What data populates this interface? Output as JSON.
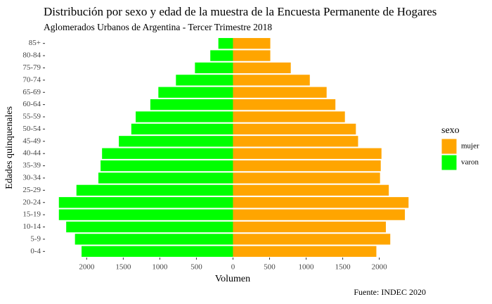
{
  "chart_data": {
    "type": "bar",
    "orientation": "horizontal",
    "title": "Distribución por sexo y edad de la muestra de la Encuesta Permanente de Hogares",
    "subtitle": "Aglomerados Urbanos de Argentina - Tercer Trimestre 2018",
    "x_label": "Volumen",
    "y_label": "Edades quinquenales",
    "caption": "Fuente: INDEC 2020",
    "legend_title": "sexo",
    "legend_position": "right",
    "grid": false,
    "categories": [
      "0-4",
      "5-9",
      "10-14",
      "15-19",
      "20-24",
      "25-29",
      "30-34",
      "35-39",
      "40-44",
      "45-49",
      "50-54",
      "55-59",
      "60-64",
      "65-69",
      "70-74",
      "75-79",
      "80-84",
      "85+"
    ],
    "series": [
      {
        "name": "mujer",
        "color": "#FFA500",
        "values": [
          1960,
          2150,
          2090,
          2350,
          2400,
          2130,
          2010,
          2020,
          2030,
          1710,
          1680,
          1530,
          1400,
          1280,
          1050,
          790,
          510,
          510
        ]
      },
      {
        "name": "varon",
        "color": "#00FF00",
        "values": [
          -2070,
          -2160,
          -2280,
          -2380,
          -2380,
          -2140,
          -1840,
          -1810,
          -1790,
          -1560,
          -1390,
          -1330,
          -1130,
          -1020,
          -780,
          -520,
          -310,
          -200
        ]
      }
    ],
    "xlim": [
      -2570,
      2580
    ],
    "xticks": [
      {
        "value": -2000,
        "label": "2000"
      },
      {
        "value": -1500,
        "label": "1500"
      },
      {
        "value": -1000,
        "label": "1000"
      },
      {
        "value": -500,
        "label": "500"
      },
      0,
      500,
      1000,
      1500,
      2000
    ]
  }
}
